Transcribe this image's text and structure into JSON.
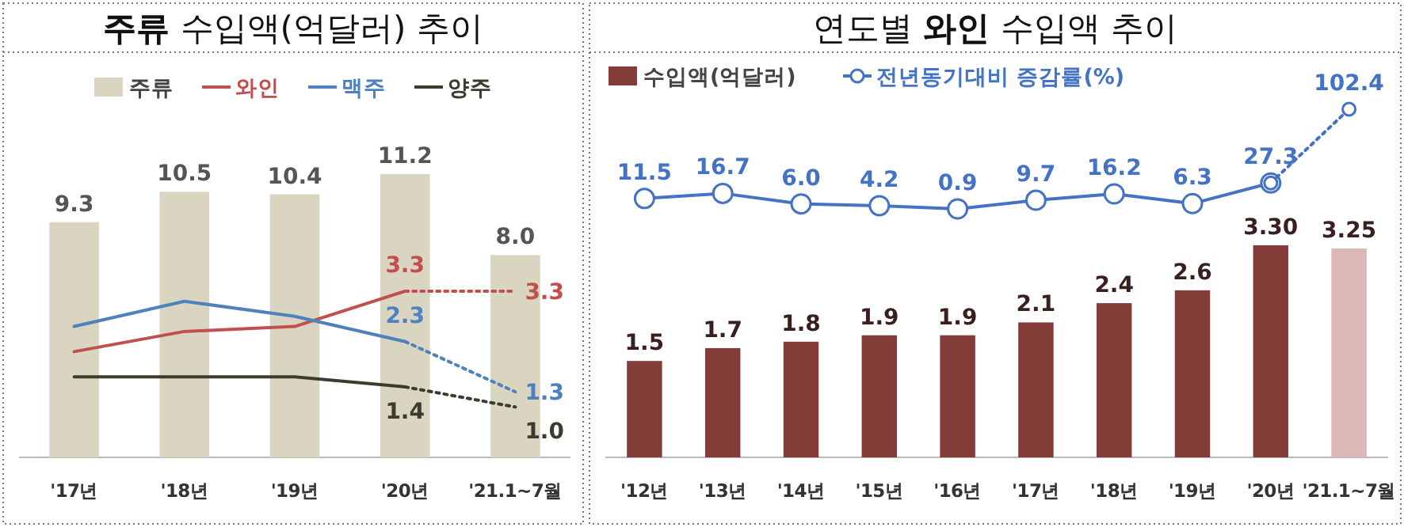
{
  "chart_data": [
    {
      "type": "bar",
      "title": "**주류** 수입액(억달러) 추이",
      "categories": [
        "'17년",
        "'18년",
        "'19년",
        "'20년",
        "'21.1~7월"
      ],
      "legend": "top",
      "series": [
        {
          "name": "주류",
          "color": "#d9d5c1",
          "values": [
            9.3,
            10.5,
            10.4,
            11.2,
            8.0
          ],
          "value_labels": [
            "9.3",
            "10.5",
            "10.4",
            "11.2",
            "8.0"
          ]
        },
        {
          "name": "와인",
          "type": "line",
          "axis": "y2",
          "color": "#c0504d",
          "values": [
            2.1,
            2.5,
            2.6,
            3.3,
            null
          ],
          "value_labels": [
            null,
            null,
            null,
            "3.3",
            null
          ]
        },
        {
          "name": "맥주",
          "type": "line",
          "axis": "y2",
          "color": "#4f81bd",
          "values": [
            2.6,
            3.1,
            2.8,
            2.3,
            null
          ],
          "value_labels": [
            null,
            null,
            null,
            "2.3",
            null
          ]
        },
        {
          "name": "양주",
          "type": "line",
          "axis": "y2",
          "color": "#3b3b2e",
          "values": [
            1.6,
            1.6,
            1.6,
            1.4,
            null
          ],
          "value_labels": [
            null,
            null,
            null,
            "1.4",
            null
          ]
        },
        {
          "type": "line",
          "axis": "y2",
          "color": "#c0504d",
          "line_style": "dotted",
          "values": [
            null,
            null,
            null,
            3.3,
            3.3
          ],
          "value_labels": [
            null,
            null,
            null,
            null,
            "3.3"
          ]
        },
        {
          "type": "line",
          "axis": "y2",
          "color": "#4f81bd",
          "line_style": "dotted",
          "values": [
            null,
            null,
            null,
            2.3,
            1.3
          ],
          "value_labels": [
            null,
            null,
            null,
            null,
            "1.3"
          ]
        },
        {
          "type": "line",
          "axis": "y2",
          "color": "#3b3b2e",
          "line_style": "dotted",
          "values": [
            null,
            null,
            null,
            1.4,
            1.0
          ],
          "value_labels": [
            null,
            null,
            null,
            null,
            "1.0"
          ]
        }
      ]
    },
    {
      "type": "bar",
      "categories": [
        "'12년",
        "'13년",
        "'14년",
        "'15년",
        "'16년",
        "'17년",
        "'18년",
        "'19년",
        "'20년",
        "'21.1~7월"
      ],
      "legend": "top left",
      "series": [
        {
          "name": "수입액(억달러)",
          "color": "#843c39",
          "colors": [
            "#843c39",
            "#843c39",
            "#843c39",
            "#843c39",
            "#843c39",
            "#843c39",
            "#843c39",
            "#843c39",
            "#843c39",
            "#d9b8b6"
          ],
          "values": [
            1.5,
            1.7,
            1.8,
            1.9,
            1.9,
            2.1,
            2.4,
            2.6,
            3.3,
            3.25
          ],
          "value_labels": [
            "1.5",
            "1.7",
            "1.8",
            "1.9",
            "1.9",
            "2.1",
            "2.4",
            "2.6",
            "3.30",
            "3.25"
          ]
        }
      ]
    },
    {
      "type": "line",
      "title": "연도별 **와인** 수입액 추이",
      "categories": [
        null,
        null,
        null,
        null,
        null,
        null,
        null,
        null,
        null,
        null
      ],
      "legend": "top",
      "series": [
        {
          "name": "전년동기대비 증감률(%)",
          "color": "#4472c4",
          "marker": "circle",
          "values": [
            11.5,
            16.7,
            6.0,
            4.2,
            0.9,
            9.7,
            16.2,
            6.3,
            27.3,
            null
          ],
          "value_labels": [
            "11.5",
            "16.7",
            "6.0",
            "4.2",
            "0.9",
            "9.7",
            "16.2",
            "6.3",
            "27.3",
            null
          ]
        },
        {
          "color": "#4472c4",
          "marker": "circle",
          "line_style": "dotted",
          "values": [
            null,
            null,
            null,
            null,
            null,
            null,
            null,
            null,
            27.3,
            102.4
          ],
          "value_labels": [
            null,
            null,
            null,
            null,
            null,
            null,
            null,
            null,
            null,
            "102.4"
          ]
        }
      ]
    }
  ]
}
